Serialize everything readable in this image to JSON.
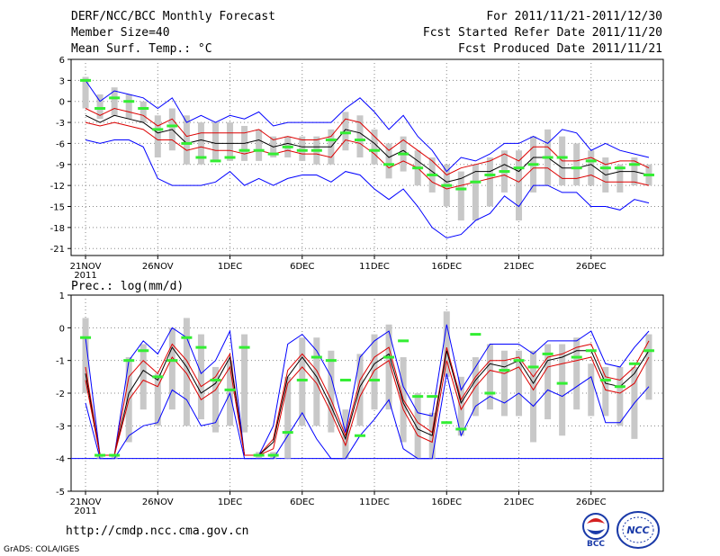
{
  "header": {
    "title": "DERF/NCC/BCC Monthly Forecast",
    "member_size": "Member Size=40",
    "variable_label": "Mean Surf. Temp.: °C",
    "forecast_period": "For 2011/11/21-2011/12/30",
    "started_refer": "Fcst Started Refer Date 2011/11/20",
    "produced": "Fcst Produced Date 2011/11/21"
  },
  "footer": {
    "url": "http://cmdp.ncc.cma.gov.cn",
    "credit": "GrADS: COLA/IGES",
    "logo_left_text": "BCC",
    "logo_right_text": "NCC"
  },
  "colors": {
    "envelope": "#0000ff",
    "spread": "#dd0000",
    "mean": "#000000",
    "box": "#c8c8c8",
    "marker": "#33ee33"
  },
  "chart_data": [
    {
      "type": "line",
      "title": "Mean Surf. Temp.: °C",
      "x_start_day": 1,
      "x_days": 40,
      "xtick_days": [
        1,
        6,
        11,
        16,
        21,
        26,
        31,
        36
      ],
      "xtick_labels": [
        "21NOV",
        "26NOV",
        "1DEC",
        "6DEC",
        "11DEC",
        "16DEC",
        "21DEC",
        "26DEC"
      ],
      "year_label": "2011",
      "ylim": [
        -22,
        6
      ],
      "yticks": [
        6,
        3,
        0,
        -3,
        -6,
        -9,
        -12,
        -15,
        -18,
        -21
      ],
      "grid": true,
      "series": [
        {
          "name": "max",
          "values": [
            3,
            0,
            1.5,
            1,
            0.5,
            -1,
            0.5,
            -3,
            -2,
            -3,
            -2,
            -2.5,
            -1.5,
            -3.5,
            -3,
            -3,
            -3,
            -3,
            -1,
            0.5,
            -1.5,
            -4,
            -2,
            -5,
            -7,
            -10,
            -8,
            -8.5,
            -7.5,
            -6,
            -6,
            -5,
            -6,
            -4,
            -4.5,
            -7,
            -6,
            -7,
            -7.5,
            -8
          ]
        },
        {
          "name": "upper",
          "values": [
            -1,
            -2,
            -1,
            -1.5,
            -2,
            -3.5,
            -2.5,
            -5,
            -4.5,
            -4.5,
            -4.5,
            -4.5,
            -4,
            -5.5,
            -5,
            -5.5,
            -5.5,
            -5,
            -2.5,
            -3,
            -5,
            -7,
            -5.5,
            -7,
            -8.5,
            -10.5,
            -9.5,
            -9,
            -8.5,
            -7.5,
            -8.5,
            -6.5,
            -6.5,
            -8.5,
            -8.5,
            -8,
            -9,
            -8.5,
            -8.5,
            -9.5
          ]
        },
        {
          "name": "mean",
          "values": [
            -2,
            -3,
            -2,
            -2.5,
            -3,
            -4.5,
            -4,
            -6,
            -5.5,
            -6,
            -6,
            -6,
            -5.5,
            -6.5,
            -6,
            -6.5,
            -6.5,
            -6.5,
            -4,
            -4.5,
            -6,
            -8,
            -7,
            -8.5,
            -10,
            -11.5,
            -11,
            -10,
            -10,
            -9,
            -10,
            -8,
            -8,
            -9.5,
            -9.5,
            -9,
            -10.5,
            -10,
            -10,
            -10.5
          ]
        },
        {
          "name": "lower",
          "values": [
            -3,
            -3.5,
            -3,
            -3.5,
            -4,
            -5.5,
            -5.5,
            -7,
            -6.5,
            -7,
            -7,
            -7.5,
            -7,
            -7.5,
            -7,
            -7.5,
            -7.5,
            -8,
            -5.5,
            -6,
            -7.5,
            -9.5,
            -8.5,
            -9.5,
            -11.5,
            -12.5,
            -12,
            -11.5,
            -11,
            -10.5,
            -11.5,
            -9.5,
            -9.5,
            -11,
            -11,
            -10.5,
            -11.5,
            -11.5,
            -11.5,
            -12
          ]
        },
        {
          "name": "min",
          "values": [
            -5.5,
            -6,
            -5.5,
            -5.5,
            -6.5,
            -11,
            -12,
            -12,
            -12,
            -11.5,
            -10,
            -12,
            -11,
            -12,
            -11,
            -10.5,
            -10.5,
            -11.5,
            -10,
            -10.5,
            -12.5,
            -14,
            -12.5,
            -15,
            -18,
            -19.5,
            -19,
            -17,
            -16,
            -13.5,
            -15,
            -12,
            -12,
            -13,
            -13,
            -15,
            -15,
            -15.5,
            -14,
            -14.5
          ]
        },
        {
          "name": "control",
          "values": [
            3,
            -1,
            0.5,
            0,
            -1,
            -4,
            -3.5,
            -6,
            -8,
            -8.5,
            -8,
            -7,
            -7,
            -7.5,
            -6.5,
            -7,
            -7,
            -5.5,
            -4.5,
            -5.5,
            -7,
            -9,
            -7.5,
            -9.5,
            -10.5,
            -12,
            -12.5,
            -11.5,
            -10.5,
            -10,
            -9.5,
            -9,
            -8,
            -8,
            -9.5,
            -8.5,
            -9.5,
            -9.5,
            -9,
            -10.5
          ]
        }
      ],
      "box_ranges": [
        [
          -1,
          3.5
        ],
        [
          -2.5,
          1
        ],
        [
          -2,
          2
        ],
        [
          -2.5,
          1
        ],
        [
          -3,
          0
        ],
        [
          -8,
          -2
        ],
        [
          -7,
          -1
        ],
        [
          -9,
          -2
        ],
        [
          -9,
          -3
        ],
        [
          -8.5,
          -3
        ],
        [
          -8.5,
          -3
        ],
        [
          -8.5,
          -3.5
        ],
        [
          -8.5,
          -4
        ],
        [
          -8,
          -5
        ],
        [
          -8,
          -5
        ],
        [
          -8.5,
          -5
        ],
        [
          -9,
          -5
        ],
        [
          -9,
          -4
        ],
        [
          -7,
          -1.5
        ],
        [
          -8,
          -2
        ],
        [
          -9,
          -4
        ],
        [
          -11,
          -6
        ],
        [
          -10,
          -5
        ],
        [
          -12,
          -7
        ],
        [
          -13,
          -8
        ],
        [
          -15,
          -9
        ],
        [
          -17,
          -10
        ],
        [
          -17,
          -9
        ],
        [
          -15,
          -8
        ],
        [
          -13,
          -7
        ],
        [
          -17,
          -7
        ],
        [
          -13,
          -5
        ],
        [
          -12,
          -4
        ],
        [
          -12,
          -5
        ],
        [
          -12,
          -6
        ],
        [
          -12,
          -7
        ],
        [
          -13,
          -8
        ],
        [
          -13,
          -9
        ],
        [
          -12,
          -8
        ],
        [
          -12,
          -9
        ]
      ]
    },
    {
      "type": "line",
      "title": "Prec.: log(mm/d)",
      "x_start_day": 1,
      "x_days": 40,
      "xtick_days": [
        1,
        6,
        11,
        16,
        21,
        26,
        31,
        36
      ],
      "xtick_labels": [
        "21NOV",
        "26NOV",
        "1DEC",
        "6DEC",
        "11DEC",
        "16DEC",
        "21DEC",
        "26DEC"
      ],
      "year_label": "2011",
      "ylim": [
        -5,
        1
      ],
      "yticks": [
        1,
        0,
        -1,
        -2,
        -3,
        -4,
        -5
      ],
      "grid": true,
      "baseline": -4,
      "series": [
        {
          "name": "max",
          "values": [
            -0.3,
            -3.9,
            -3.9,
            -1,
            -0.4,
            -0.8,
            0,
            -0.3,
            -1.4,
            -1,
            -0.1,
            -3.9,
            -3.9,
            -3,
            -0.5,
            -0.2,
            -0.7,
            -1.5,
            -3.2,
            -0.9,
            -0.4,
            -0.1,
            -1.8,
            -2.6,
            -2.7,
            0.1,
            -1.9,
            -1.2,
            -0.5,
            -0.5,
            -0.5,
            -0.8,
            -0.4,
            -0.4,
            -0.4,
            -0.1,
            -1.1,
            -1.2,
            -0.6,
            -0.1
          ]
        },
        {
          "name": "upper",
          "values": [
            -1.2,
            -3.9,
            -3.9,
            -1.5,
            -1,
            -1.4,
            -0.5,
            -1,
            -1.8,
            -1.5,
            -0.8,
            -3.9,
            -3.9,
            -3.4,
            -1.3,
            -0.8,
            -1.3,
            -2.2,
            -3.3,
            -1.6,
            -0.9,
            -0.6,
            -2.2,
            -2.9,
            -3.2,
            -0.6,
            -2.2,
            -1.5,
            -1,
            -1,
            -0.9,
            -1.5,
            -0.9,
            -0.8,
            -0.6,
            -0.5,
            -1.5,
            -1.6,
            -1.2,
            -0.4
          ]
        },
        {
          "name": "mean",
          "values": [
            -1.4,
            -3.9,
            -3.9,
            -2,
            -1.3,
            -1.6,
            -0.6,
            -1.2,
            -2,
            -1.7,
            -0.9,
            -3.9,
            -3.9,
            -3.5,
            -1.5,
            -0.9,
            -1.5,
            -2.4,
            -3.4,
            -1.8,
            -1.1,
            -0.8,
            -2.3,
            -3.1,
            -3.3,
            -0.7,
            -2.3,
            -1.6,
            -1.1,
            -1.2,
            -1,
            -1.7,
            -1,
            -0.9,
            -0.7,
            -0.7,
            -1.7,
            -1.8,
            -1.4,
            -0.7
          ]
        },
        {
          "name": "lower",
          "values": [
            -1.6,
            -3.9,
            -3.9,
            -2.2,
            -1.6,
            -1.8,
            -0.9,
            -1.4,
            -2.2,
            -1.9,
            -1.2,
            -3.9,
            -3.9,
            -3.7,
            -1.7,
            -1.2,
            -1.7,
            -2.6,
            -3.6,
            -2.1,
            -1.3,
            -1,
            -2.5,
            -3.3,
            -3.5,
            -1,
            -2.5,
            -1.8,
            -1.3,
            -1.4,
            -1.2,
            -1.9,
            -1.2,
            -1.1,
            -1,
            -0.9,
            -1.9,
            -2,
            -1.7,
            -0.9
          ]
        },
        {
          "name": "min",
          "values": [
            -2.3,
            -4,
            -4,
            -3.3,
            -3,
            -2.9,
            -1.9,
            -2.2,
            -3,
            -2.9,
            -2,
            -4,
            -4,
            -4,
            -3.3,
            -2.6,
            -3.4,
            -4,
            -4,
            -3.3,
            -2.8,
            -2.2,
            -3.7,
            -4,
            -4,
            -1.4,
            -3.3,
            -2.4,
            -2.1,
            -2.3,
            -2,
            -2.4,
            -1.9,
            -2.1,
            -1.8,
            -1.5,
            -2.9,
            -2.9,
            -2.3,
            -1.8
          ]
        },
        {
          "name": "control",
          "values": [
            -0.3,
            -3.9,
            -3.9,
            -1,
            -0.7,
            -1.5,
            -1,
            -0.3,
            -0.6,
            -1.6,
            -1.9,
            -0.6,
            -3.9,
            -3.9,
            -3.2,
            -1.6,
            -0.9,
            -1,
            -1.6,
            -3.3,
            -1.6,
            -0.9,
            -0.4,
            -2.1,
            -2.1,
            -2.9,
            -3.1,
            -0.2,
            -2,
            -1.3,
            -1,
            -1.2,
            -0.8,
            -1.7,
            -0.9,
            -0.7,
            -1.6,
            -1.8,
            -1.1,
            -0.7
          ]
        }
      ],
      "box_ranges": [
        [
          -2,
          0.3
        ],
        [
          -4,
          -3.9
        ],
        [
          -4,
          -3.9
        ],
        [
          -3.5,
          -0.9
        ],
        [
          -2.5,
          -0.5
        ],
        [
          -3,
          -1.4
        ],
        [
          -2.5,
          0
        ],
        [
          -3,
          0.3
        ],
        [
          -2.8,
          -0.2
        ],
        [
          -3.2,
          -1.2
        ],
        [
          -3,
          -1
        ],
        [
          -3.2,
          -0.2
        ],
        [
          -4,
          -3.8
        ],
        [
          -4,
          -3.8
        ],
        [
          -4,
          -1.5
        ],
        [
          -3,
          -0.3
        ],
        [
          -3,
          -0.3
        ],
        [
          -3.2,
          -0.7
        ],
        [
          -4,
          -2.5
        ],
        [
          -3,
          -0.8
        ],
        [
          -2.5,
          -0.2
        ],
        [
          -2.5,
          0.1
        ],
        [
          -3.5,
          -0.9
        ],
        [
          -4,
          -2
        ],
        [
          -4,
          -2.6
        ],
        [
          -1.5,
          0.5
        ],
        [
          -3.3,
          -1.5
        ],
        [
          -2.7,
          -0.9
        ],
        [
          -2.5,
          -0.5
        ],
        [
          -2.7,
          -0.7
        ],
        [
          -2.7,
          -0.7
        ],
        [
          -3.5,
          -0.7
        ],
        [
          -2.8,
          -0.5
        ],
        [
          -3.3,
          -0.5
        ],
        [
          -2.5,
          -0.3
        ],
        [
          -2.7,
          -1.1
        ],
        [
          -2.7,
          -1.2
        ],
        [
          -3,
          -1.2
        ],
        [
          -3.4,
          -1.2
        ],
        [
          -2.2,
          -0.2
        ]
      ]
    }
  ]
}
